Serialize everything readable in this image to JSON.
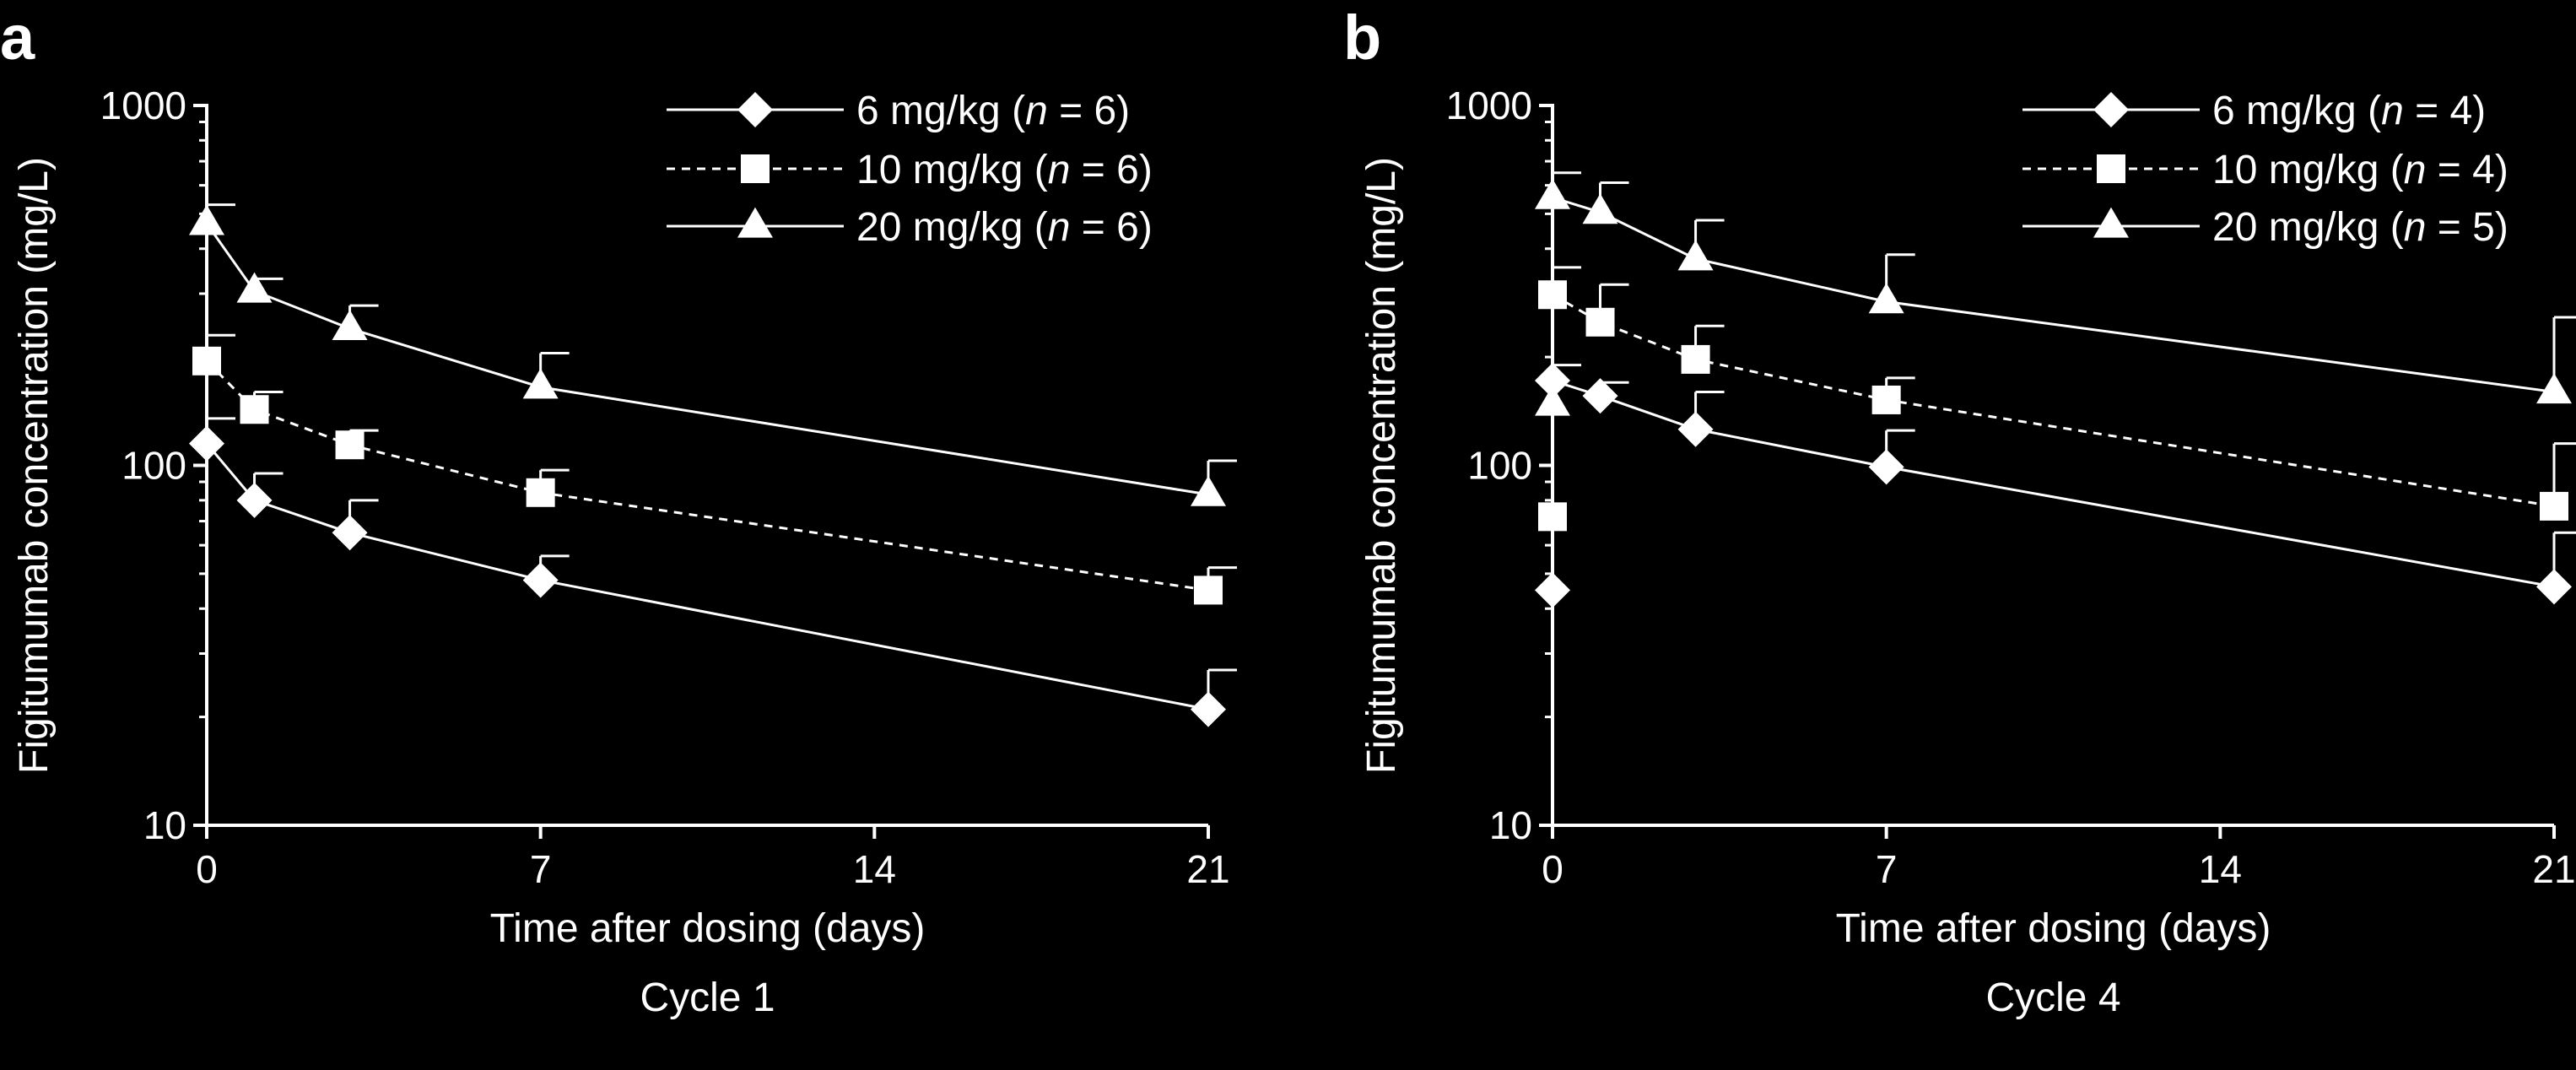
{
  "chart_data": [
    {
      "type": "line",
      "panel_label": "a",
      "xlabel": "Time after dosing (days)",
      "ylabel": "Figitumumab concentration (mg/L)",
      "subtitle": "Cycle 1",
      "x_ticks": [
        0,
        7,
        14,
        21
      ],
      "x_tick_labels": [
        "0",
        "7",
        "14",
        "21"
      ],
      "xlim": [
        0,
        21
      ],
      "y_scale": "log",
      "y_ticks": [
        10,
        100,
        1000
      ],
      "y_tick_labels": [
        "10",
        "100",
        "1000"
      ],
      "ylim": [
        10,
        1000
      ],
      "legend_position": "top-right",
      "series": [
        {
          "name": "6 mg/kg (n = 6)",
          "name_prefix": "6 mg/kg (",
          "name_italic": "n",
          "name_suffix": " = 6)",
          "marker": "diamond",
          "line_style": "solid",
          "x": [
            0,
            1,
            3,
            7,
            21
          ],
          "y": [
            115,
            80,
            65,
            48,
            21
          ],
          "y_err_upper": [
            135,
            95,
            80,
            56,
            27
          ]
        },
        {
          "name": "10 mg/kg (n = 6)",
          "name_prefix": "10 mg/kg (",
          "name_italic": "n",
          "name_suffix": " = 6)",
          "marker": "square",
          "line_style": "dashed",
          "x": [
            0,
            1,
            3,
            7,
            21
          ],
          "y": [
            195,
            143,
            114,
            84,
            45
          ],
          "y_err_upper": [
            230,
            160,
            125,
            97,
            52
          ]
        },
        {
          "name": "20 mg/kg (n = 6)",
          "name_prefix": "20 mg/kg (",
          "name_italic": "n",
          "name_suffix": " = 6)",
          "marker": "triangle",
          "line_style": "solid",
          "x": [
            0,
            1,
            3,
            7,
            21
          ],
          "y": [
            470,
            305,
            240,
            165,
            83
          ],
          "y_err_upper": [
            530,
            330,
            278,
            205,
            103
          ]
        }
      ]
    },
    {
      "type": "line",
      "panel_label": "b",
      "xlabel": "Time after dosing (days)",
      "ylabel": "Figitumumab concentration (mg/L)",
      "subtitle": "Cycle 4",
      "x_ticks": [
        0,
        7,
        14,
        21
      ],
      "x_tick_labels": [
        "0",
        "7",
        "14",
        "21"
      ],
      "xlim": [
        0,
        21
      ],
      "y_scale": "log",
      "y_ticks": [
        10,
        100,
        1000
      ],
      "y_tick_labels": [
        "10",
        "100",
        "1000"
      ],
      "ylim": [
        10,
        1000
      ],
      "legend_position": "top-right",
      "series": [
        {
          "name": "6 mg/kg (n = 4)",
          "name_prefix": "6 mg/kg (",
          "name_italic": "n",
          "name_suffix": " = 4)",
          "marker": "diamond",
          "line_style": "solid",
          "x": [
            0,
            0,
            1,
            3,
            7,
            21
          ],
          "y": [
            45,
            172,
            156,
            126,
            99,
            46
          ],
          "y_err_upper": [
            null,
            190,
            170,
            160,
            125,
            65
          ],
          "connect_from_index": 1
        },
        {
          "name": "10 mg/kg (n = 4)",
          "name_prefix": "10 mg/kg (",
          "name_italic": "n",
          "name_suffix": " = 4)",
          "marker": "square",
          "line_style": "dashed",
          "x": [
            0,
            0,
            1,
            3,
            7,
            21
          ],
          "y": [
            72,
            298,
            250,
            197,
            152,
            77
          ],
          "y_err_upper": [
            null,
            355,
            318,
            244,
            175,
            115
          ],
          "connect_from_index": 1
        },
        {
          "name": "20 mg/kg (n = 5)",
          "name_prefix": "20 mg/kg (",
          "name_italic": "n",
          "name_suffix": " = 5)",
          "marker": "triangle",
          "line_style": "solid",
          "x": [
            0,
            0,
            1,
            3,
            7,
            21
          ],
          "y": [
            148,
            555,
            505,
            375,
            285,
            160
          ],
          "y_err_upper": [
            null,
            650,
            610,
            480,
            385,
            258
          ],
          "connect_from_index": 1
        }
      ]
    }
  ]
}
